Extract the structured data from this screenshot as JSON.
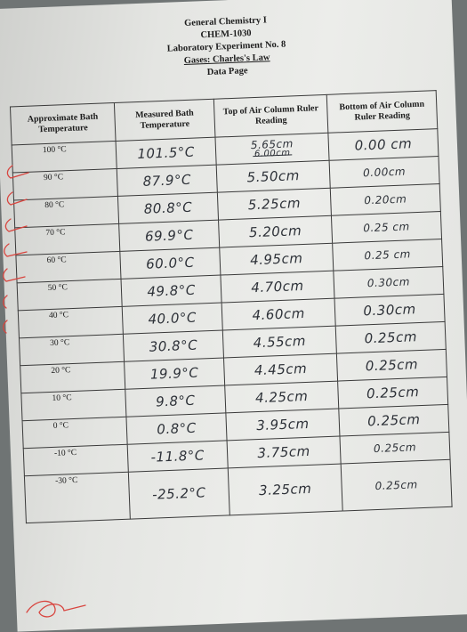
{
  "header": {
    "course": "General Chemistry I",
    "code": "CHEM-1030",
    "experiment": "Laboratory Experiment No. 8",
    "topic": "Gases:  Charles's Law",
    "page": "Data Page"
  },
  "table": {
    "headers": [
      "Approximate Bath Temperature",
      "Measured Bath Temperature",
      "Top of Air Column Ruler Reading",
      "Bottom of Air Column Ruler Reading"
    ],
    "rows": [
      {
        "bath": "100 °C",
        "measured": "101.5°C",
        "top": "5.65cm",
        "top_crossed": "6.00cm",
        "bottom": "0.00 cm"
      },
      {
        "bath": "90 °C",
        "measured": "87.9°C",
        "top": "5.50cm",
        "bottom": "0.00cm"
      },
      {
        "bath": "80 °C",
        "measured": "80.8°C",
        "top": "5.25cm",
        "bottom": "0.20cm"
      },
      {
        "bath": "70 °C",
        "measured": "69.9°C",
        "top": "5.20cm",
        "bottom": "0.25 cm"
      },
      {
        "bath": "60 °C",
        "measured": "60.0°C",
        "top": "4.95cm",
        "bottom": "0.25 cm"
      },
      {
        "bath": "50 °C",
        "measured": "49.8°C",
        "top": "4.70cm",
        "bottom": "0.30cm"
      },
      {
        "bath": "40 °C",
        "measured": "40.0°C",
        "top": "4.60cm",
        "bottom": "0.30cm"
      },
      {
        "bath": "30 °C",
        "measured": "30.8°C",
        "top": "4.55cm",
        "bottom": "0.25cm"
      },
      {
        "bath": "20 °C",
        "measured": "19.9°C",
        "top": "4.45cm",
        "bottom": "0.25cm"
      },
      {
        "bath": "10 °C",
        "measured": "9.8°C",
        "top": "4.25cm",
        "bottom": "0.25cm"
      },
      {
        "bath": "0 °C",
        "measured": "0.8°C",
        "top": "3.95cm",
        "bottom": "0.25cm"
      },
      {
        "bath": "-10 °C",
        "measured": "-11.8°C",
        "top": "3.75cm",
        "bottom": "0.25cm"
      },
      {
        "bath": "-30 °C",
        "measured": "-25.2°C",
        "top": "3.25cm",
        "bottom": "0.25cm"
      }
    ]
  },
  "colors": {
    "paper": "#e8e9e6",
    "ink": "#2d3138",
    "red_pen": "#d8453f"
  }
}
